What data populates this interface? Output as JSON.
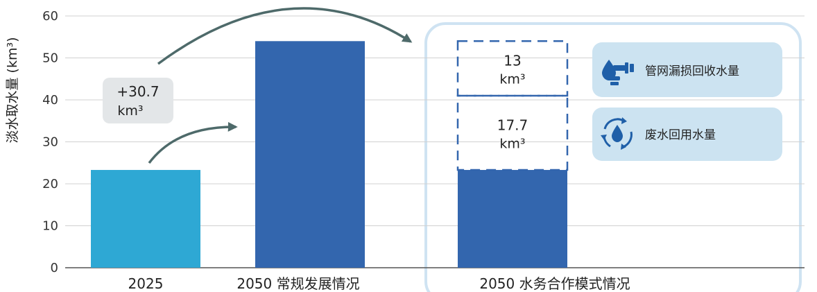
{
  "chart_data": {
    "type": "bar",
    "ylabel": "淡水取水量 (km³)",
    "ylim": [
      0,
      60
    ],
    "yticks": [
      0,
      10,
      20,
      30,
      40,
      50,
      60
    ],
    "grid": true,
    "categories": [
      "2025",
      "2050 常规发展情况",
      "2050 水务合作模式情况"
    ],
    "bars": [
      {
        "category": "2025",
        "value": 23.3
      },
      {
        "category": "2050 常规发展情况",
        "value": 54
      },
      {
        "category": "2050 水务合作模式情况",
        "value": 23.3,
        "stacked_dashed": [
          {
            "value": 17.7,
            "label_value": "17.7",
            "label_unit": "km³"
          },
          {
            "value": 13,
            "label_value": "13",
            "label_unit": "km³"
          }
        ]
      }
    ],
    "annotation": {
      "value": "+30.7",
      "unit": "km³"
    },
    "legend": [
      {
        "label": "管网漏损回收水量",
        "icon": "water-drop-faucet-icon"
      },
      {
        "label": "废水回用水量",
        "icon": "water-recycle-icon"
      }
    ],
    "colors": {
      "bar_2025": "#2EA8D4",
      "bar_2050": "#3366AE",
      "grid": "#D0D0D0",
      "axis": "#555555",
      "panel_border": "#CFE3F2",
      "legend_fill": "#CCE3F1",
      "annotation_fill": "#E3E6E8",
      "arrow": "#4E6A6A",
      "icon": "#1F5FA8"
    }
  }
}
